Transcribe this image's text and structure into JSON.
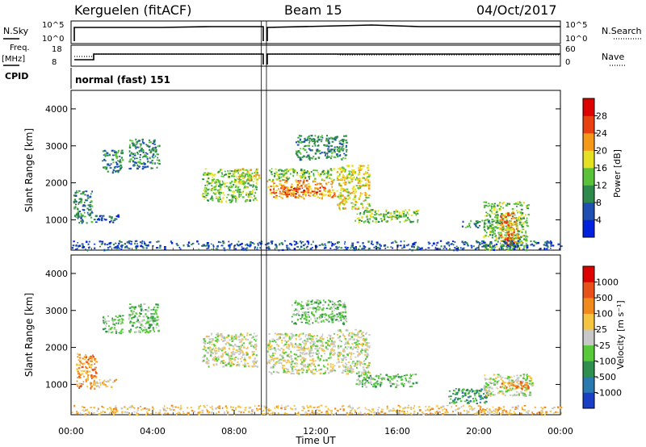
{
  "header": {
    "station": "Kerguelen (fitACF)",
    "beam": "Beam 15",
    "date": "04/Oct/2017"
  },
  "strips": {
    "nsky_label": "N.Sky",
    "nsky_ticks": [
      "10^5",
      "10^0"
    ],
    "nsearch_label": "N.Search",
    "nsearch_ticks": [
      "10^5",
      "10^0"
    ],
    "freq_label": "Freq.",
    "freq_unit": "[MHz]",
    "freq_ticks": [
      "18",
      "8"
    ],
    "nave_label": "Nave",
    "nave_ticks": [
      "60",
      "0"
    ],
    "cpid_label": "CPID",
    "cpid_value": "normal (fast) 151",
    "gap_start": "09:20",
    "gap_end": "09:35"
  },
  "chart_data": [
    {
      "type": "heatmap",
      "name": "power",
      "ylabel": "Slant Range [km]",
      "yticks": [
        1000,
        2000,
        3000,
        4000
      ],
      "xticks": [
        "00:00",
        "04:00",
        "08:00",
        "12:00",
        "16:00",
        "20:00",
        "00:00"
      ],
      "xlim_hours": [
        0,
        24
      ],
      "ylim_km": [
        180,
        4500
      ],
      "colorbar": {
        "label": "Power [dB]",
        "ticks": [
          "28",
          "24",
          "20",
          "16",
          "12",
          "8",
          "4"
        ],
        "colors": [
          "#0022dd",
          "#1f4fb0",
          "#2d8a4a",
          "#59c23a",
          "#e6e023",
          "#f59a18",
          "#e84010",
          "#dd0000"
        ]
      },
      "patches": [
        {
          "x": [
            0.1,
            1.0
          ],
          "y": [
            900,
            1800
          ],
          "level": 2
        },
        {
          "x": [
            1.0,
            2.3
          ],
          "y": [
            950,
            1150
          ],
          "level": 1
        },
        {
          "x": [
            1.5,
            2.5
          ],
          "y": [
            2300,
            2900
          ],
          "level": 2
        },
        {
          "x": [
            2.8,
            4.3
          ],
          "y": [
            2400,
            3200
          ],
          "level": 2
        },
        {
          "x": [
            6.4,
            9.1
          ],
          "y": [
            1500,
            2400
          ],
          "level": 3
        },
        {
          "x": [
            8.0,
            9.2
          ],
          "y": [
            2000,
            2400
          ],
          "level": 4
        },
        {
          "x": [
            9.6,
            12.9
          ],
          "y": [
            1600,
            2100
          ],
          "level": 5
        },
        {
          "x": [
            10.2,
            12.4
          ],
          "y": [
            1700,
            1900
          ],
          "level": 6
        },
        {
          "x": [
            9.6,
            12.9
          ],
          "y": [
            2100,
            2400
          ],
          "level": 3
        },
        {
          "x": [
            11.0,
            13.5
          ],
          "y": [
            2650,
            3300
          ],
          "level": 2
        },
        {
          "x": [
            13.0,
            14.6
          ],
          "y": [
            1300,
            2500
          ],
          "level": 4
        },
        {
          "x": [
            13.9,
            17.0
          ],
          "y": [
            950,
            1300
          ],
          "level": 3
        },
        {
          "x": [
            19.1,
            21.0
          ],
          "y": [
            800,
            1000
          ],
          "level": 2
        },
        {
          "x": [
            20.2,
            22.4
          ],
          "y": [
            200,
            1500
          ],
          "level": 3
        },
        {
          "x": [
            21.0,
            21.9
          ],
          "y": [
            400,
            1200
          ],
          "level": 5
        },
        {
          "x": [
            21.3,
            21.7
          ],
          "y": [
            300,
            700
          ],
          "level": 6
        },
        {
          "x": [
            0,
            24
          ],
          "y": [
            200,
            450
          ],
          "level": 1
        }
      ]
    },
    {
      "type": "heatmap",
      "name": "velocity",
      "ylabel": "Slant Range [km]",
      "yticks": [
        1000,
        2000,
        3000,
        4000
      ],
      "xticks": [
        "00:00",
        "04:00",
        "08:00",
        "12:00",
        "16:00",
        "20:00",
        "00:00"
      ],
      "xlabel": "Time UT",
      "xlim_hours": [
        0,
        24
      ],
      "ylim_km": [
        180,
        4500
      ],
      "colorbar": {
        "label": "Velocity [m s⁻¹]",
        "ticks": [
          "1000",
          "500",
          "100",
          "25",
          "-25",
          "-100",
          "-500",
          "-1000"
        ],
        "colors": [
          "#1a3fc4",
          "#2a7ab0",
          "#2f8f4e",
          "#57c93a",
          "#c8c8c8",
          "#f5c542",
          "#f08a1c",
          "#e8501a",
          "#dd0000"
        ]
      },
      "patches": [
        {
          "x": [
            0.2,
            1.2
          ],
          "y": [
            900,
            1850
          ],
          "level": 6
        },
        {
          "x": [
            1.0,
            2.3
          ],
          "y": [
            950,
            1150
          ],
          "level": 5
        },
        {
          "x": [
            1.5,
            2.5
          ],
          "y": [
            2400,
            2900
          ],
          "level": 3
        },
        {
          "x": [
            2.8,
            4.3
          ],
          "y": [
            2400,
            3200
          ],
          "level": 3
        },
        {
          "x": [
            6.4,
            9.1
          ],
          "y": [
            1500,
            2400
          ],
          "level": 4
        },
        {
          "x": [
            9.6,
            12.9
          ],
          "y": [
            1300,
            2400
          ],
          "level": 4
        },
        {
          "x": [
            10.8,
            13.5
          ],
          "y": [
            2650,
            3300
          ],
          "level": 3
        },
        {
          "x": [
            13.0,
            14.6
          ],
          "y": [
            1300,
            2500
          ],
          "level": 4
        },
        {
          "x": [
            13.9,
            16.9
          ],
          "y": [
            950,
            1300
          ],
          "level": 3
        },
        {
          "x": [
            18.5,
            20.5
          ],
          "y": [
            500,
            900
          ],
          "level": 2
        },
        {
          "x": [
            20.2,
            22.6
          ],
          "y": [
            700,
            1300
          ],
          "level": 4
        },
        {
          "x": [
            21.0,
            22.4
          ],
          "y": [
            900,
            1100
          ],
          "level": 6
        },
        {
          "x": [
            0,
            24
          ],
          "y": [
            200,
            450
          ],
          "level": 5
        }
      ]
    }
  ]
}
